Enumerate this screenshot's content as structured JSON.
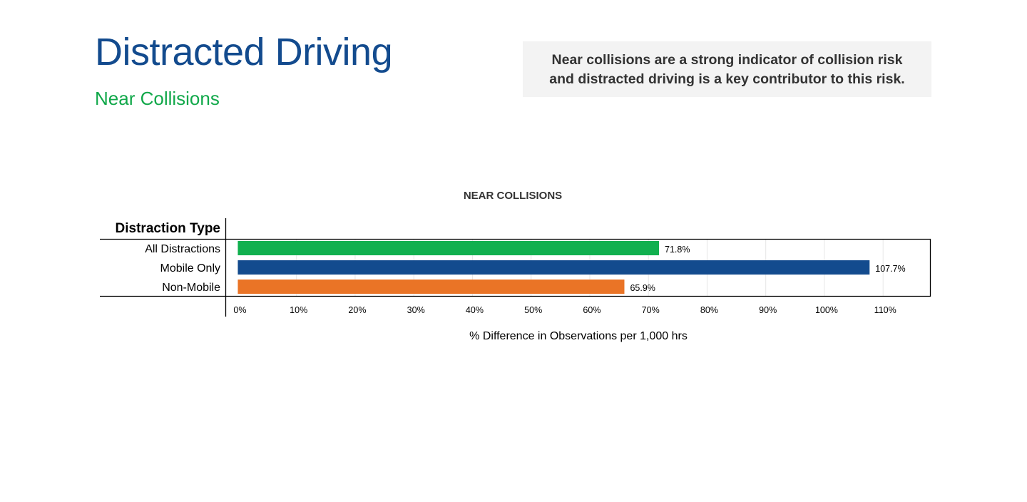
{
  "header": {
    "title": "Distracted Driving",
    "subtitle": "Near Collisions"
  },
  "callout": {
    "line1": "Near collisions are a strong indicator of collision risk",
    "line2": "and distracted driving is a key contributor to this risk."
  },
  "colors": {
    "title": "#134b8e",
    "subtitle": "#11a84a",
    "all_distractions": "#11b04f",
    "mobile_only": "#134b8e",
    "non_mobile": "#ea7426"
  },
  "chart_data": {
    "type": "bar",
    "orientation": "horizontal",
    "title": "NEAR COLLISIONS",
    "category_header": "Distraction Type",
    "xlabel": "% Difference in Observations per 1,000 hrs",
    "ylabel": "",
    "xlim": [
      -2,
      118
    ],
    "grid": true,
    "ticks": [
      {
        "value": 0,
        "label": "0%"
      },
      {
        "value": 10,
        "label": "10%"
      },
      {
        "value": 20,
        "label": "20%"
      },
      {
        "value": 30,
        "label": "30%"
      },
      {
        "value": 40,
        "label": "40%"
      },
      {
        "value": 50,
        "label": "50%"
      },
      {
        "value": 60,
        "label": "60%"
      },
      {
        "value": 70,
        "label": "70%"
      },
      {
        "value": 80,
        "label": "80%"
      },
      {
        "value": 90,
        "label": "90%"
      },
      {
        "value": 100,
        "label": "100%"
      },
      {
        "value": 110,
        "label": "110%"
      }
    ],
    "categories": [
      "All Distractions",
      "Mobile Only",
      "Non-Mobile"
    ],
    "values": [
      71.8,
      107.7,
      65.9
    ],
    "value_labels": [
      "71.8%",
      "107.7%",
      "65.9%"
    ],
    "colors": [
      "#11b04f",
      "#134b8e",
      "#ea7426"
    ]
  }
}
